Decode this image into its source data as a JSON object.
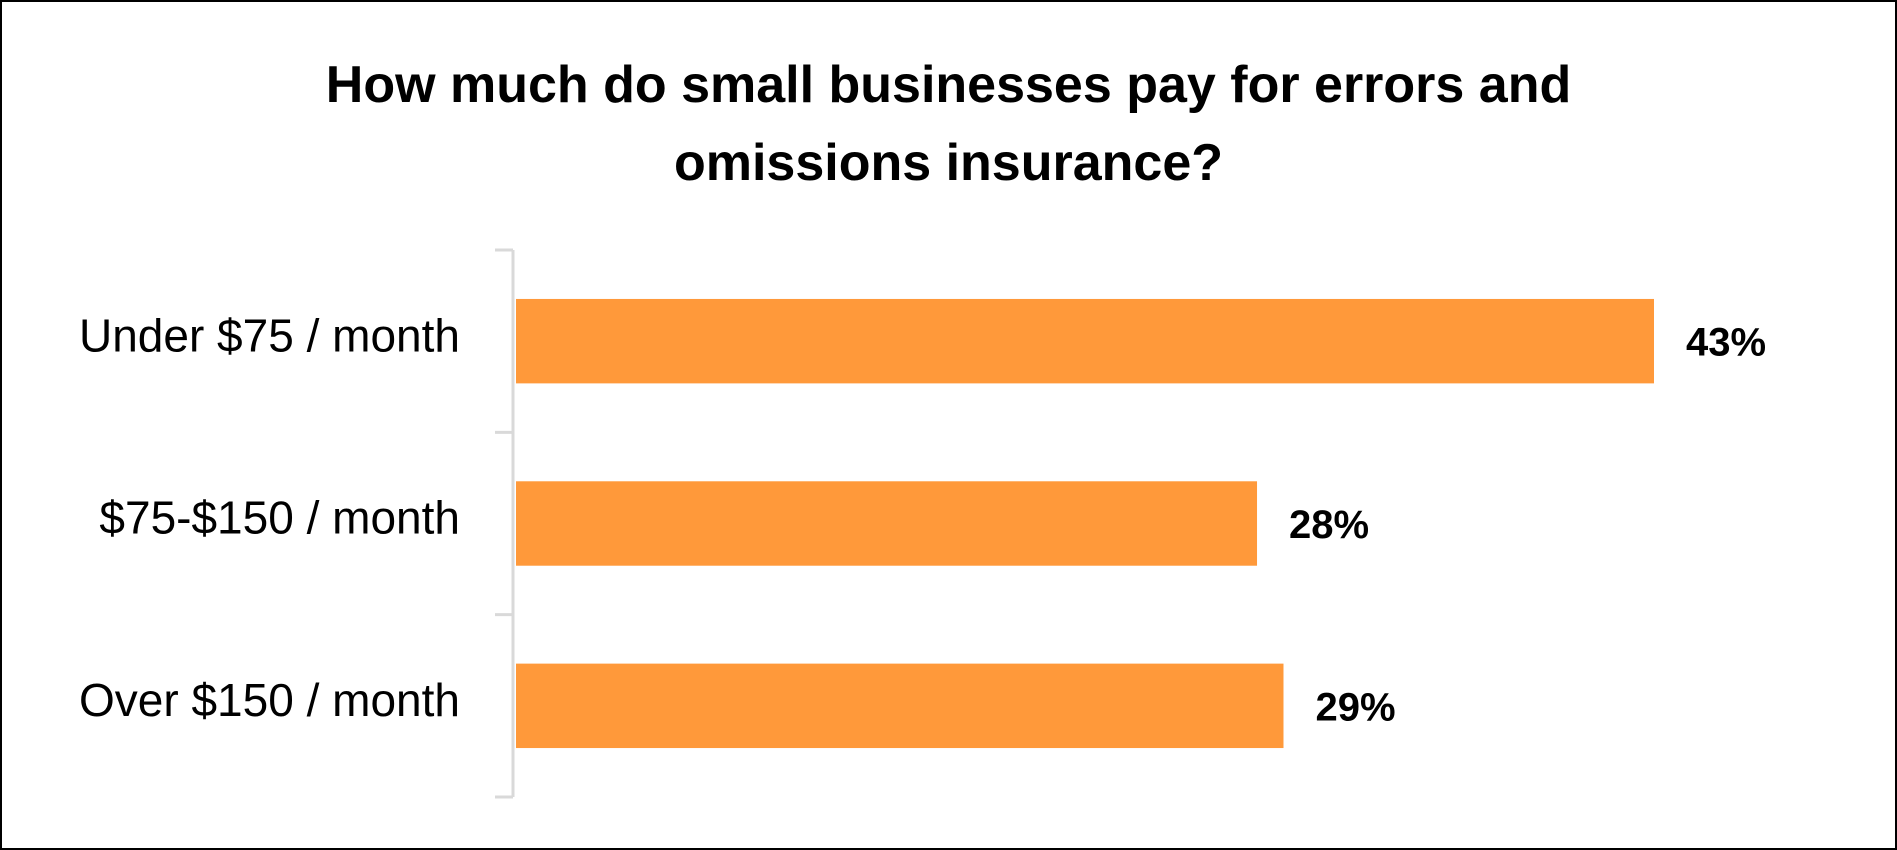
{
  "chart_data": {
    "type": "bar",
    "orientation": "horizontal",
    "title": "How much do small businesses pay for errors and omissions insurance?",
    "categories": [
      "Under $75 / month",
      "$75-$150 / month",
      "Over $150 / month"
    ],
    "values": [
      43,
      28,
      29
    ],
    "value_labels": [
      "43%",
      "28%",
      "29%"
    ],
    "unit": "%",
    "xlim": [
      0,
      43
    ],
    "grid": false,
    "legend": "none",
    "bar_color": "#FF993A",
    "axis_color": "#D9D9D9"
  }
}
